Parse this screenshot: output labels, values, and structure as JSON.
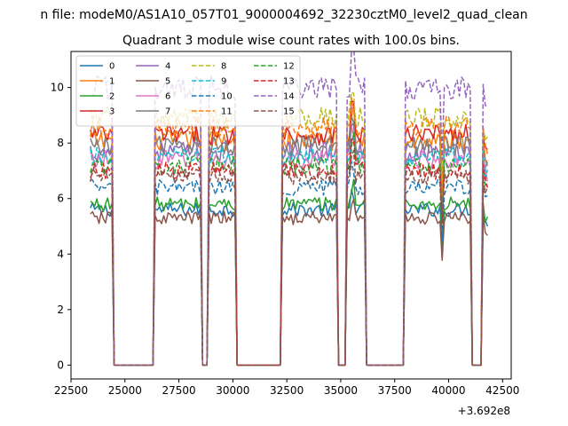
{
  "figure": {
    "suptitle": "n file: modeM0/AS1A10_057T01_9000004692_32230cztM0_level2_quad_clean",
    "title": "Quadrant 3 module wise count rates with 100.0s bins.",
    "offset_text": "+3.692e8"
  },
  "chart_data": {
    "type": "line",
    "title": "Quadrant 3 module wise count rates with 100.0s bins.",
    "xlabel": "",
    "ylabel": "",
    "xlim": [
      22500,
      42900
    ],
    "ylim": [
      -0.5,
      11.3
    ],
    "x_offset": 369200000,
    "xticks": [
      22500,
      25000,
      27500,
      30000,
      32500,
      35000,
      37500,
      40000,
      42500
    ],
    "yticks": [
      0,
      2,
      4,
      6,
      8,
      10
    ],
    "legend_position": "top-left",
    "legend_columns": 4,
    "grid": false,
    "on_intervals": [
      [
        23400,
        24400
      ],
      [
        26400,
        28500
      ],
      [
        28900,
        30100
      ],
      [
        32300,
        34800
      ],
      [
        35300,
        36100
      ],
      [
        38000,
        41000
      ],
      [
        41600,
        41850
      ]
    ],
    "series": [
      {
        "name": "0",
        "color": "#1f77b4",
        "dash": "solid",
        "level": 5.6
      },
      {
        "name": "1",
        "color": "#ff7f0e",
        "dash": "solid",
        "level": 8.1
      },
      {
        "name": "2",
        "color": "#2ca02c",
        "dash": "solid",
        "level": 5.8
      },
      {
        "name": "3",
        "color": "#d62728",
        "dash": "solid",
        "level": 8.3
      },
      {
        "name": "4",
        "color": "#9467bd",
        "dash": "solid",
        "level": 7.7
      },
      {
        "name": "5",
        "color": "#8c564b",
        "dash": "solid",
        "level": 5.3
      },
      {
        "name": "6",
        "color": "#e377c2",
        "dash": "solid",
        "level": 7.4
      },
      {
        "name": "7",
        "color": "#7f7f7f",
        "dash": "solid",
        "level": 7.9
      },
      {
        "name": "8",
        "color": "#bcbd22",
        "dash": "dashed",
        "level": 8.9
      },
      {
        "name": "9",
        "color": "#17becf",
        "dash": "dashed",
        "level": 7.5
      },
      {
        "name": "10",
        "color": "#1f77b4",
        "dash": "dashed",
        "level": 6.4
      },
      {
        "name": "11",
        "color": "#ff7f0e",
        "dash": "dashed",
        "level": 8.6
      },
      {
        "name": "12",
        "color": "#2ca02c",
        "dash": "dashed",
        "level": 7.2
      },
      {
        "name": "13",
        "color": "#d62728",
        "dash": "dashed",
        "level": 7.0
      },
      {
        "name": "14",
        "color": "#9467bd",
        "dash": "dashed",
        "level": 10.0
      },
      {
        "name": "15",
        "color": "#8c564b",
        "dash": "dashed",
        "level": 6.8
      }
    ]
  }
}
